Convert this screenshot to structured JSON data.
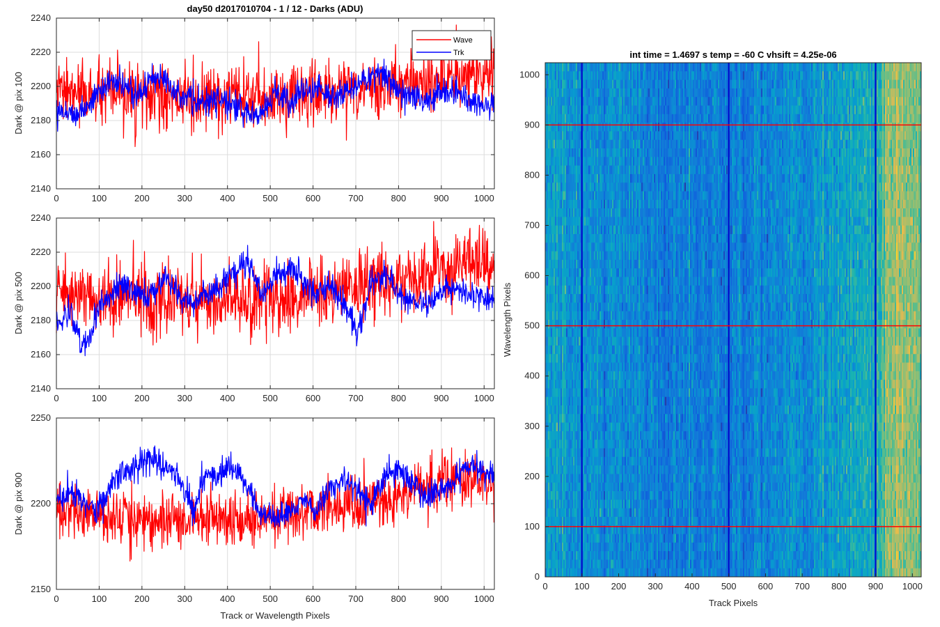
{
  "figure_title": "day50 d2017010704 - 1 / 12 - Darks (ADU)",
  "colors": {
    "wave": "#ff0000",
    "trk": "#0000ff",
    "grid": "#dcdcdc",
    "axis": "#262626"
  },
  "chart_data": [
    {
      "type": "line",
      "title": "day50 d2017010704 - 1 / 12 - Darks (ADU)",
      "ylabel": "Dark @ pix 100",
      "xlabel": "",
      "xlim": [
        0,
        1024
      ],
      "ylim": [
        2140,
        2240
      ],
      "x_ticks": [
        0,
        100,
        200,
        300,
        400,
        500,
        600,
        700,
        800,
        900,
        1000
      ],
      "y_ticks": [
        2140,
        2160,
        2180,
        2200,
        2220,
        2240
      ],
      "grid": true,
      "legend": {
        "placement": "top-right",
        "entries": [
          "Wave",
          "Trk"
        ]
      },
      "series": [
        {
          "name": "Wave",
          "color": "#ff0000",
          "x": [
            0,
            32,
            64,
            96,
            128,
            160,
            192,
            224,
            256,
            288,
            320,
            352,
            384,
            416,
            448,
            480,
            512,
            544,
            576,
            608,
            640,
            672,
            704,
            736,
            768,
            800,
            832,
            864,
            896,
            928,
            960,
            992,
            1024
          ],
          "mean": [
            2197,
            2196,
            2195,
            2195,
            2195,
            2194,
            2194,
            2193,
            2193,
            2193,
            2192,
            2192,
            2192,
            2192,
            2193,
            2193,
            2194,
            2195,
            2196,
            2196,
            2197,
            2198,
            2199,
            2200,
            2200,
            2201,
            2202,
            2203,
            2204,
            2205,
            2206,
            2207,
            2208
          ],
          "spread": 9,
          "y_min": 2156,
          "y_max": 2236
        },
        {
          "name": "Trk",
          "color": "#0000ff",
          "x": [
            0,
            32,
            64,
            96,
            128,
            160,
            192,
            224,
            256,
            288,
            320,
            352,
            384,
            416,
            448,
            480,
            512,
            544,
            576,
            608,
            640,
            672,
            704,
            736,
            768,
            800,
            832,
            864,
            896,
            928,
            960,
            992,
            1024
          ],
          "mean": [
            2188,
            2184,
            2186,
            2196,
            2203,
            2199,
            2195,
            2204,
            2207,
            2194,
            2192,
            2189,
            2193,
            2190,
            2182,
            2186,
            2196,
            2190,
            2197,
            2199,
            2194,
            2196,
            2201,
            2206,
            2208,
            2198,
            2194,
            2191,
            2196,
            2198,
            2193,
            2187,
            2190
          ],
          "spread": 4,
          "y_min": 2165,
          "y_max": 2216
        }
      ]
    },
    {
      "type": "line",
      "ylabel": "Dark @ pix 500",
      "xlabel": "",
      "xlim": [
        0,
        1024
      ],
      "ylim": [
        2140,
        2240
      ],
      "x_ticks": [
        0,
        100,
        200,
        300,
        400,
        500,
        600,
        700,
        800,
        900,
        1000
      ],
      "y_ticks": [
        2140,
        2160,
        2180,
        2200,
        2220,
        2240
      ],
      "grid": true,
      "series": [
        {
          "name": "Wave",
          "color": "#ff0000",
          "x": [
            0,
            32,
            64,
            96,
            128,
            160,
            192,
            224,
            256,
            288,
            320,
            352,
            384,
            416,
            448,
            480,
            512,
            544,
            576,
            608,
            640,
            672,
            704,
            736,
            768,
            800,
            832,
            864,
            896,
            928,
            960,
            992,
            1024
          ],
          "mean": [
            2197,
            2196,
            2195,
            2194,
            2194,
            2193,
            2193,
            2192,
            2192,
            2192,
            2191,
            2191,
            2191,
            2191,
            2192,
            2192,
            2193,
            2194,
            2195,
            2196,
            2197,
            2198,
            2200,
            2201,
            2202,
            2204,
            2205,
            2207,
            2209,
            2211,
            2213,
            2213,
            2212
          ],
          "spread": 10,
          "y_min": 2152,
          "y_max": 2238
        },
        {
          "name": "Trk",
          "color": "#0000ff",
          "x": [
            0,
            32,
            64,
            96,
            128,
            160,
            192,
            224,
            256,
            288,
            320,
            352,
            384,
            416,
            448,
            480,
            512,
            544,
            576,
            608,
            640,
            672,
            704,
            736,
            768,
            800,
            832,
            864,
            896,
            928,
            960,
            992,
            1024
          ],
          "mean": [
            2178,
            2184,
            2165,
            2186,
            2196,
            2201,
            2195,
            2196,
            2206,
            2193,
            2190,
            2196,
            2200,
            2210,
            2214,
            2196,
            2205,
            2212,
            2203,
            2196,
            2201,
            2192,
            2172,
            2203,
            2207,
            2196,
            2192,
            2189,
            2196,
            2201,
            2194,
            2195,
            2191
          ],
          "spread": 4,
          "y_min": 2156,
          "y_max": 2232
        }
      ]
    },
    {
      "type": "line",
      "ylabel": "Dark @ pix 900",
      "xlabel": "Track or Wavelength Pixels",
      "xlim": [
        0,
        1024
      ],
      "ylim": [
        2150,
        2250
      ],
      "x_ticks": [
        0,
        100,
        200,
        300,
        400,
        500,
        600,
        700,
        800,
        900,
        1000
      ],
      "y_ticks": [
        2150,
        2200,
        2250
      ],
      "grid": true,
      "series": [
        {
          "name": "Wave",
          "color": "#ff0000",
          "x": [
            0,
            32,
            64,
            96,
            128,
            160,
            192,
            224,
            256,
            288,
            320,
            352,
            384,
            416,
            448,
            480,
            512,
            544,
            576,
            608,
            640,
            672,
            704,
            736,
            768,
            800,
            832,
            864,
            896,
            928,
            960,
            992,
            1024
          ],
          "mean": [
            2196,
            2195,
            2194,
            2193,
            2193,
            2192,
            2192,
            2191,
            2191,
            2191,
            2190,
            2190,
            2190,
            2190,
            2191,
            2191,
            2192,
            2193,
            2194,
            2195,
            2196,
            2197,
            2199,
            2201,
            2203,
            2205,
            2207,
            2209,
            2211,
            2213,
            2214,
            2213,
            2212
          ],
          "spread": 8,
          "y_min": 2151,
          "y_max": 2240
        },
        {
          "name": "Trk",
          "color": "#0000ff",
          "x": [
            0,
            32,
            64,
            96,
            128,
            160,
            192,
            224,
            256,
            288,
            320,
            352,
            384,
            416,
            448,
            480,
            512,
            544,
            576,
            608,
            640,
            672,
            704,
            736,
            768,
            800,
            832,
            864,
            896,
            928,
            960,
            992,
            1024
          ],
          "mean": [
            2199,
            2208,
            2201,
            2195,
            2212,
            2219,
            2223,
            2227,
            2220,
            2214,
            2198,
            2219,
            2216,
            2222,
            2208,
            2192,
            2192,
            2196,
            2201,
            2194,
            2210,
            2213,
            2207,
            2200,
            2215,
            2219,
            2213,
            2203,
            2209,
            2212,
            2222,
            2219,
            2216
          ],
          "spread": 4,
          "y_min": 2186,
          "y_max": 2234
        }
      ]
    },
    {
      "type": "heatmap",
      "title": "int time = 1.4697 s    temp = -60 C    vhsift = 4.25e-06",
      "xlabel": "Track Pixels",
      "ylabel": "Wavelength Pixels",
      "xlim": [
        0,
        1024
      ],
      "ylim": [
        0,
        1024
      ],
      "x_ticks": [
        0,
        100,
        200,
        300,
        400,
        500,
        600,
        700,
        800,
        900,
        1000
      ],
      "y_ticks": [
        0,
        100,
        200,
        300,
        400,
        500,
        600,
        700,
        800,
        900,
        1000
      ],
      "colormap": "parula",
      "column_profile_x": [
        0,
        64,
        128,
        192,
        256,
        320,
        384,
        448,
        512,
        576,
        640,
        704,
        768,
        832,
        896,
        928,
        960,
        992,
        1024
      ],
      "column_profile_level": [
        0.4,
        0.38,
        0.36,
        0.34,
        0.32,
        0.3,
        0.28,
        0.28,
        0.3,
        0.32,
        0.34,
        0.36,
        0.4,
        0.44,
        0.48,
        0.66,
        0.72,
        0.7,
        0.66
      ],
      "vertical_markers": [
        100,
        500,
        900
      ],
      "horizontal_markers": [
        100,
        500,
        900
      ],
      "vertical_marker_color": "#0000cc",
      "horizontal_marker_color": "#ff0000"
    }
  ]
}
